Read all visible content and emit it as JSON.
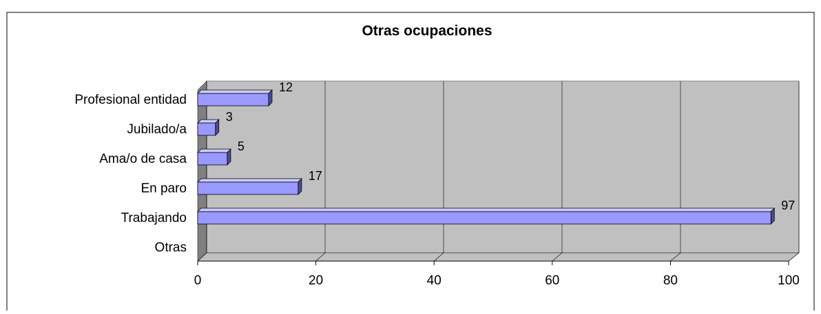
{
  "chart_data": {
    "type": "bar",
    "orientation": "horizontal",
    "title": "Otras ocupaciones",
    "categories": [
      "Profesional entidad",
      "Jubilado/a",
      "Ama/o de casa",
      "En paro",
      "Trabajando",
      "Otras"
    ],
    "values": [
      12,
      3,
      5,
      17,
      97,
      null
    ],
    "color": "#9999ff",
    "xlim": [
      0,
      100
    ],
    "xticks": [
      0,
      20,
      40,
      60,
      80,
      100
    ],
    "grid": true
  }
}
